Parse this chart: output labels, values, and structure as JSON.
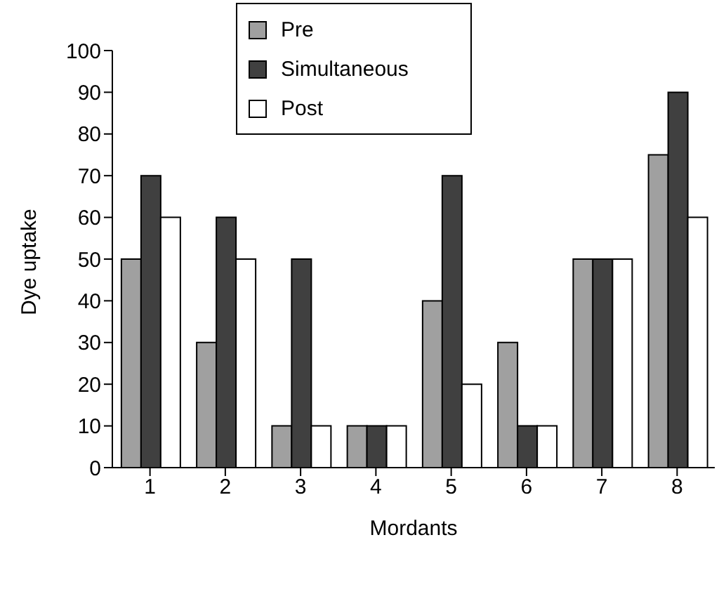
{
  "chart_data": {
    "type": "bar",
    "xlabel": "Mordants",
    "ylabel": "Dye uptake",
    "categories": [
      "1",
      "2",
      "3",
      "4",
      "5",
      "6",
      "7",
      "8"
    ],
    "series": [
      {
        "name": "Pre",
        "color": "#a0a0a0",
        "values": [
          50,
          30,
          10,
          10,
          40,
          30,
          50,
          75
        ]
      },
      {
        "name": "Simultaneous",
        "color": "#404040",
        "values": [
          70,
          60,
          50,
          10,
          70,
          10,
          50,
          90
        ]
      },
      {
        "name": "Post",
        "color": "#ffffff",
        "values": [
          60,
          50,
          10,
          10,
          20,
          10,
          50,
          60
        ]
      }
    ],
    "ylim": [
      0,
      100
    ],
    "yticks": [
      0,
      10,
      20,
      30,
      40,
      50,
      60,
      70,
      80,
      90,
      100
    ],
    "grid": false,
    "legend": "top"
  }
}
